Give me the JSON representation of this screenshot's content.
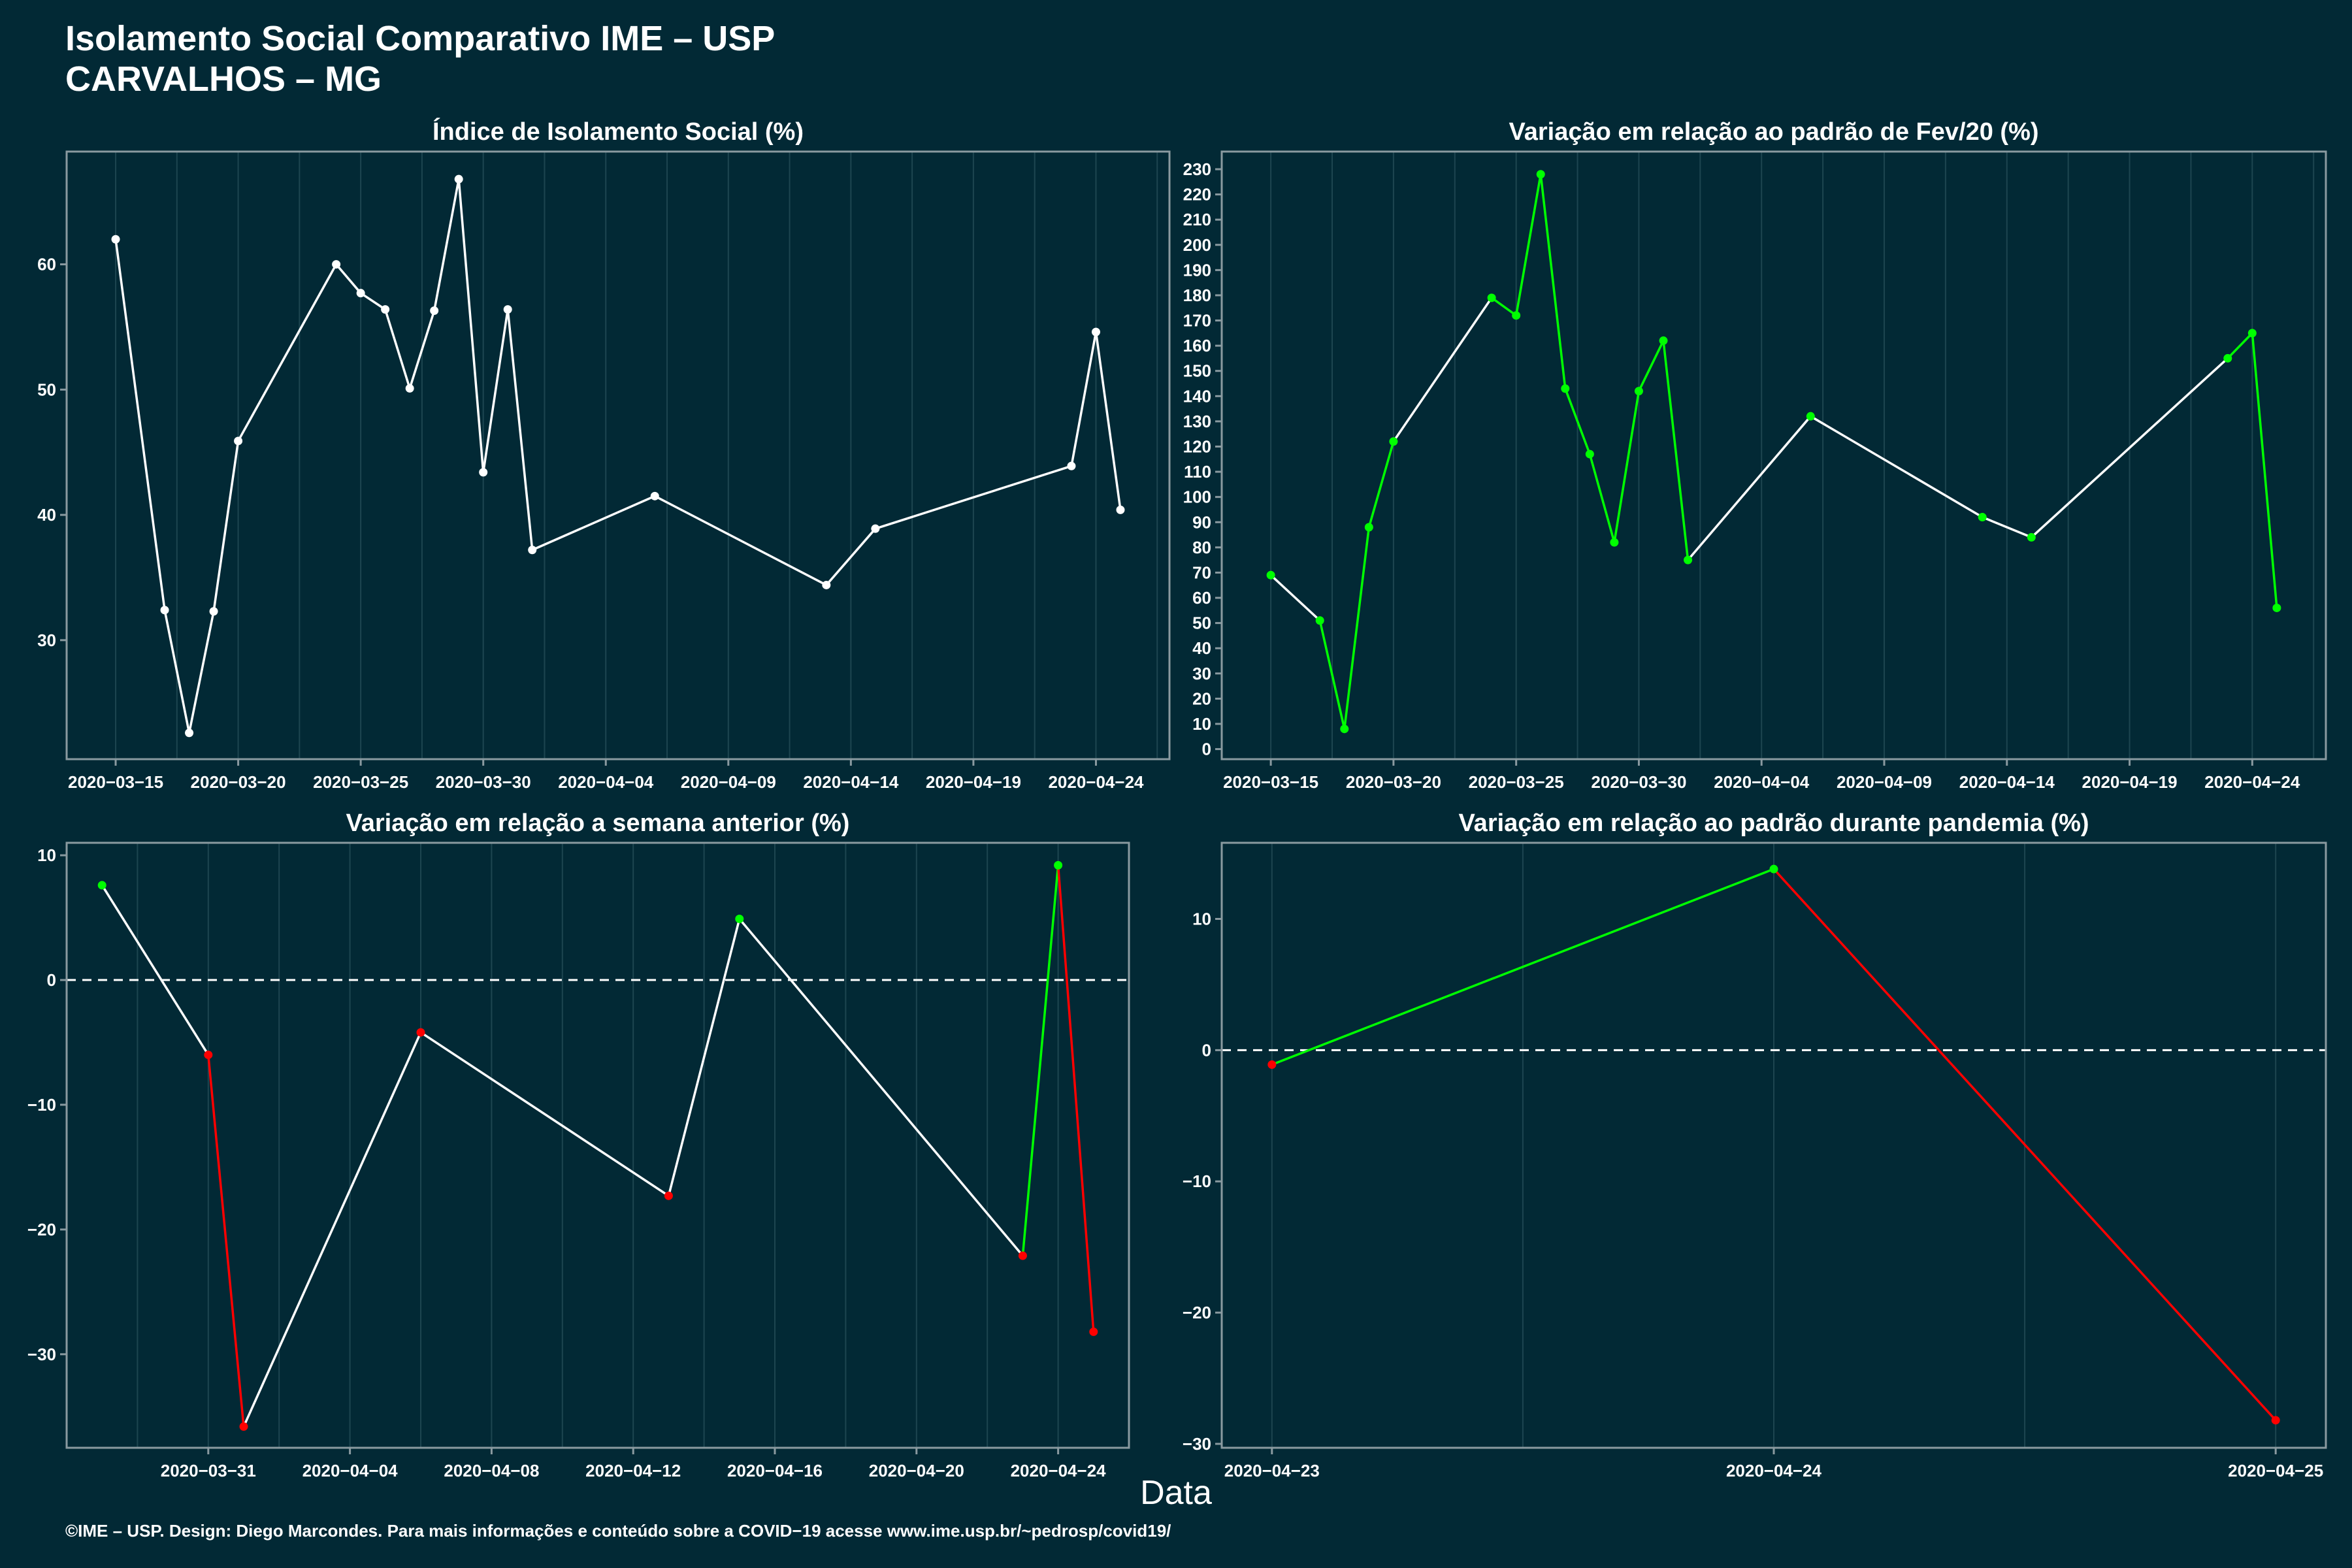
{
  "title_line1": "Isolamento Social Comparativo IME – USP",
  "title_line2": "CARVALHOS – MG",
  "global_xlabel": "Data",
  "footer": "©IME – USP. Design: Diego Marcondes. Para mais informações e conteúdo sobre a COVID−19 acesse www.ime.usp.br/~pedrosp/covid19/",
  "colors": {
    "background": "#022935",
    "panel": "#022935",
    "grid": "#1d4550",
    "axis": "#8a9aa0",
    "text": "#ffffff",
    "increase": "#00ff00",
    "decrease": "#ff0000",
    "neutral": "#ffffff"
  },
  "chart_data": [
    {
      "type": "line",
      "title": "Índice de Isolamento Social (%)",
      "x_kind": "date",
      "xlim": [
        "2020-03-13",
        "2020-04-27"
      ],
      "ylim": [
        20.5,
        69
      ],
      "yticks": [
        30,
        40,
        50,
        60
      ],
      "ytick_labels": [
        "30",
        "40",
        "50",
        "60"
      ],
      "xticks": [
        "2020-03-15",
        "2020-03-20",
        "2020-03-25",
        "2020-03-30",
        "2020-04-04",
        "2020-04-09",
        "2020-04-14",
        "2020-04-19",
        "2020-04-24"
      ],
      "xtick_labels": [
        "2020−03−15",
        "2020−03−20",
        "2020−03−25",
        "2020−03−30",
        "2020−04−04",
        "2020−04−09",
        "2020−04−14",
        "2020−04−19",
        "2020−04−24"
      ],
      "color_mode": "single",
      "point_color": "#ffffff",
      "x": [
        "2020-03-15",
        "2020-03-17",
        "2020-03-18",
        "2020-03-19",
        "2020-03-20",
        "2020-03-24",
        "2020-03-25",
        "2020-03-26",
        "2020-03-27",
        "2020-03-28",
        "2020-03-29",
        "2020-03-30",
        "2020-03-31",
        "2020-04-01",
        "2020-04-06",
        "2020-04-13",
        "2020-04-15",
        "2020-04-23",
        "2020-04-24",
        "2020-04-25"
      ],
      "y": [
        62.0,
        32.4,
        22.6,
        32.3,
        45.9,
        60.0,
        57.7,
        56.4,
        50.1,
        56.3,
        66.8,
        43.4,
        56.4,
        37.2,
        41.5,
        34.4,
        38.9,
        43.9,
        54.6,
        40.4
      ]
    },
    {
      "type": "line",
      "title": "Variação em relação ao padrão de Fev/20 (%)",
      "x_kind": "date",
      "xlim": [
        "2020-03-13",
        "2020-04-27"
      ],
      "ylim": [
        -4,
        237
      ],
      "yticks": [
        0,
        10,
        20,
        30,
        40,
        50,
        60,
        70,
        80,
        90,
        100,
        110,
        120,
        130,
        140,
        150,
        160,
        170,
        180,
        190,
        200,
        210,
        220,
        230
      ],
      "ytick_labels": [
        "0",
        "10",
        "20",
        "30",
        "40",
        "50",
        "60",
        "70",
        "80",
        "90",
        "100",
        "110",
        "120",
        "130",
        "140",
        "150",
        "160",
        "170",
        "180",
        "190",
        "200",
        "210",
        "220",
        "230"
      ],
      "xticks": [
        "2020-03-15",
        "2020-03-20",
        "2020-03-25",
        "2020-03-30",
        "2020-04-04",
        "2020-04-09",
        "2020-04-14",
        "2020-04-19",
        "2020-04-24"
      ],
      "xtick_labels": [
        "2020−03−15",
        "2020−03−20",
        "2020−03−25",
        "2020−03−30",
        "2020−04−04",
        "2020−04−09",
        "2020−04−14",
        "2020−04−19",
        "2020−04−24"
      ],
      "color_mode": "trend",
      "x": [
        "2020-03-15",
        "2020-03-17",
        "2020-03-18",
        "2020-03-19",
        "2020-03-20",
        "2020-03-24",
        "2020-03-25",
        "2020-03-26",
        "2020-03-27",
        "2020-03-28",
        "2020-03-29",
        "2020-03-30",
        "2020-03-31",
        "2020-04-01",
        "2020-04-06",
        "2020-04-13",
        "2020-04-15",
        "2020-04-23",
        "2020-04-24",
        "2020-04-25"
      ],
      "y": [
        69,
        51,
        8,
        88,
        122,
        179,
        172,
        228,
        143,
        117,
        82,
        142,
        162,
        75,
        132,
        92,
        84,
        155,
        165,
        56
      ],
      "point_colors": [
        "#00ff00",
        "#00ff00",
        "#00ff00",
        "#00ff00",
        "#00ff00",
        "#00ff00",
        "#00ff00",
        "#00ff00",
        "#00ff00",
        "#00ff00",
        "#00ff00",
        "#00ff00",
        "#00ff00",
        "#00ff00",
        "#00ff00",
        "#00ff00",
        "#00ff00",
        "#00ff00",
        "#00ff00",
        "#00ff00"
      ],
      "segment_colors": [
        "#ffffff",
        "#00ff00",
        "#00ff00",
        "#00ff00",
        "#ffffff",
        "#00ff00",
        "#00ff00",
        "#00ff00",
        "#00ff00",
        "#00ff00",
        "#00ff00",
        "#00ff00",
        "#00ff00",
        "#ffffff",
        "#ffffff",
        "#ffffff",
        "#ffffff",
        "#00ff00",
        "#00ff00"
      ]
    },
    {
      "type": "line",
      "title": "Variação em relação a semana anterior (%)",
      "x_kind": "date",
      "xlim": [
        "2020-03-27",
        "2020-04-26"
      ],
      "ylim": [
        -37.5,
        11
      ],
      "yticks": [
        -30,
        -20,
        -10,
        0,
        10
      ],
      "ytick_labels": [
        "−30",
        "−20",
        "−10",
        "0",
        "10"
      ],
      "xticks": [
        "2020-03-31",
        "2020-04-04",
        "2020-04-08",
        "2020-04-12",
        "2020-04-16",
        "2020-04-20",
        "2020-04-24"
      ],
      "xtick_labels": [
        "2020−03−31",
        "2020−04−04",
        "2020−04−08",
        "2020−04−12",
        "2020−04−16",
        "2020−04−20",
        "2020−04−24"
      ],
      "zero_line": true,
      "color_mode": "trend",
      "x": [
        "2020-03-28",
        "2020-03-31",
        "2020-04-01",
        "2020-04-06",
        "2020-04-13",
        "2020-04-15",
        "2020-04-23",
        "2020-04-24",
        "2020-04-25"
      ],
      "y": [
        7.6,
        -6.0,
        -35.8,
        -4.2,
        -17.3,
        4.9,
        -22.1,
        9.2,
        -28.2
      ],
      "point_colors": [
        "#00ff00",
        "#ff0000",
        "#ff0000",
        "#ff0000",
        "#ff0000",
        "#00ff00",
        "#ff0000",
        "#00ff00",
        "#ff0000"
      ],
      "segment_colors": [
        "#ffffff",
        "#ff0000",
        "#ffffff",
        "#ffffff",
        "#ffffff",
        "#ffffff",
        "#00ff00",
        "#ff0000"
      ]
    },
    {
      "type": "line",
      "title": "Variação em relação ao padrão durante pandemia (%)",
      "x_kind": "date",
      "xlim": [
        "2020-04-22.9",
        "2020-04-25.1"
      ],
      "ylim": [
        -30.3,
        15.8
      ],
      "yticks": [
        -30,
        -20,
        -10,
        0,
        10
      ],
      "ytick_labels": [
        "−30",
        "−20",
        "−10",
        "0",
        "10"
      ],
      "xticks": [
        "2020-04-23",
        "2020-04-24",
        "2020-04-25"
      ],
      "xtick_labels": [
        "2020−04−23",
        "2020−04−24",
        "2020−04−25"
      ],
      "zero_line": true,
      "color_mode": "trend",
      "x": [
        "2020-04-23",
        "2020-04-24",
        "2020-04-25"
      ],
      "y": [
        -1.1,
        13.8,
        -28.2
      ],
      "point_colors": [
        "#ff0000",
        "#00ff00",
        "#ff0000"
      ],
      "segment_colors": [
        "#00ff00",
        "#ff0000"
      ]
    }
  ]
}
